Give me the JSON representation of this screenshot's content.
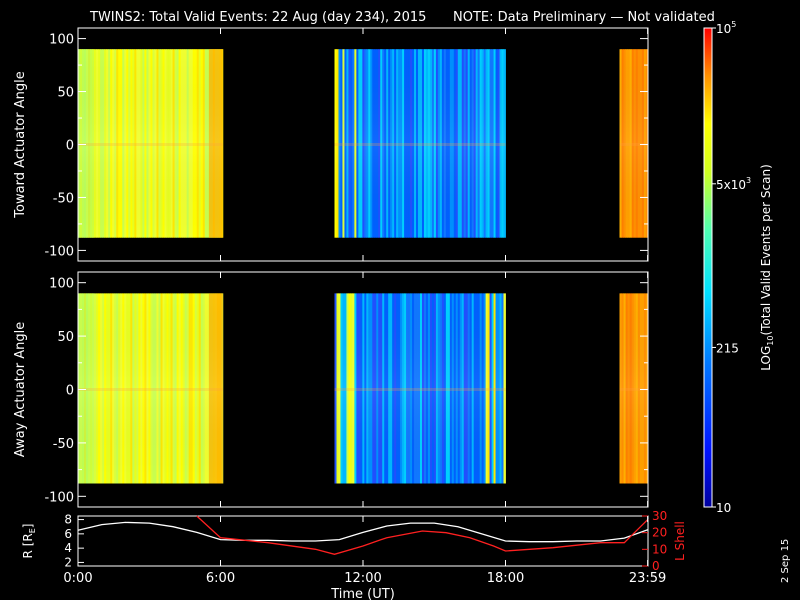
{
  "header": {
    "title": "TWINS2: Total Valid Events: 22 Aug (day 234), 2015",
    "note": "NOTE: Data Preliminary — Not validated"
  },
  "side_label": "2 Sep 15",
  "colors": {
    "note": "#ff2020",
    "lshell": "#ff2020",
    "radius": "#ffffff",
    "background": "#000000"
  },
  "chart_data": [
    {
      "type": "heatmap",
      "name": "toward-panel",
      "ylabel": "Toward Actuator Angle",
      "ylim": [
        -110,
        110
      ],
      "yticks": [
        100,
        50,
        0,
        -50,
        -100
      ],
      "data_yrange": [
        -88,
        90
      ],
      "data_segments_hours": [
        [
          0.0,
          6.1
        ],
        [
          10.8,
          18.0
        ],
        [
          22.8,
          24.0
        ]
      ],
      "grid": false
    },
    {
      "type": "heatmap",
      "name": "away-panel",
      "ylabel": "Away Actuator Angle",
      "ylim": [
        -110,
        110
      ],
      "yticks": [
        100,
        50,
        0,
        -50,
        -100
      ],
      "data_yrange": [
        -88,
        90
      ],
      "data_segments_hours": [
        [
          0.0,
          6.1
        ],
        [
          10.8,
          18.0
        ],
        [
          22.8,
          24.0
        ]
      ],
      "grid": false
    },
    {
      "type": "line",
      "name": "orbit-panel",
      "xlabel": "Time (UT)",
      "xlim": [
        0,
        24
      ],
      "xticks": [
        0,
        6,
        12,
        18,
        23.983
      ],
      "xticklabels": [
        "0:00",
        "6:00",
        "12:00",
        "18:00",
        "23:59"
      ],
      "y_left": {
        "label": "R [R",
        "label_sub": "E",
        "label_end": "]",
        "ylim": [
          1.5,
          8.5
        ],
        "ticks": [
          2,
          4,
          6,
          8
        ]
      },
      "y_right": {
        "label": "L Shell",
        "ylim": [
          0,
          30
        ],
        "ticks": [
          0,
          10,
          20,
          30
        ]
      },
      "series": [
        {
          "name": "R [RE]",
          "axis": "left",
          "x": [
            0,
            1,
            2,
            3,
            4,
            5,
            6,
            7,
            8,
            9,
            10,
            11,
            12,
            13,
            14,
            15,
            16,
            17,
            18,
            19,
            20,
            21,
            22,
            23,
            24
          ],
          "y": [
            6.5,
            7.3,
            7.6,
            7.5,
            7.0,
            6.2,
            5.2,
            5.1,
            5.1,
            5.0,
            5.0,
            5.2,
            6.2,
            7.1,
            7.5,
            7.5,
            7.0,
            6.0,
            5.0,
            4.9,
            4.9,
            5.0,
            5.0,
            5.4,
            6.6
          ]
        },
        {
          "name": "L Shell",
          "axis": "right",
          "x": [
            5.0,
            6.0,
            8.0,
            10.0,
            10.8,
            12.0,
            13.0,
            14.5,
            15.5,
            16.5,
            17.5,
            18.0,
            20.0,
            22.0,
            23.0,
            24.0
          ],
          "y": [
            30,
            17,
            14,
            10,
            7,
            12,
            17,
            21,
            20,
            17,
            12,
            9,
            11,
            14,
            14,
            28
          ]
        }
      ]
    }
  ],
  "colorbar": {
    "label": "LOG",
    "label_sub": "10",
    "label_rest": "(Total Valid Events per Scan)",
    "range": [
      10,
      100000
    ],
    "scale": "log",
    "ticks": [
      {
        "value": 10,
        "text": "10"
      },
      {
        "value": 215,
        "text": "215"
      },
      {
        "value": 5000,
        "text": "5x10",
        "sup": "3"
      },
      {
        "value": 100000,
        "text": "10",
        "sup": "5"
      }
    ]
  }
}
